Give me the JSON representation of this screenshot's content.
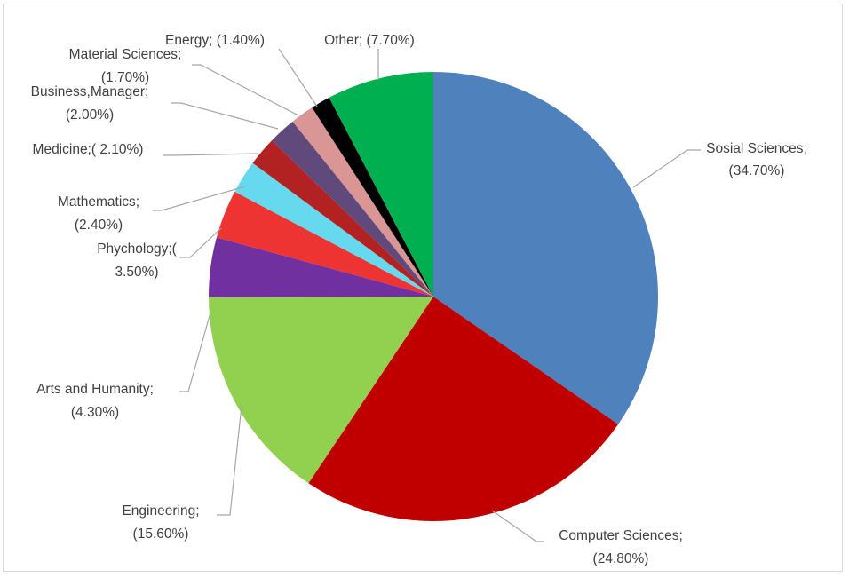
{
  "chart_data": {
    "type": "pie",
    "title": "",
    "unit": "%",
    "slices": [
      {
        "label": "Sosial Sciences;",
        "value_text": "(34.70%)",
        "value": 34.7,
        "color": "#4f81bd"
      },
      {
        "label": "Computer Sciences;",
        "value_text": "(24.80%)",
        "value": 24.8,
        "color": "#c00000"
      },
      {
        "label": "Engineering;",
        "value_text": "(15.60%)",
        "value": 15.6,
        "color": "#92d050"
      },
      {
        "label": "Arts and Humanity;",
        "value_text": "(4.30%)",
        "value": 4.3,
        "color": "#7030a0"
      },
      {
        "label": "Phychology;(",
        "value_text": "3.50%)",
        "value": 3.5,
        "color": "#ee3333"
      },
      {
        "label": "Mathematics;",
        "value_text": "(2.40%)",
        "value": 2.4,
        "color": "#66d9ee"
      },
      {
        "label": "Medicine;( 2.10%)",
        "value_text": "",
        "value": 2.1,
        "color": "#b22222"
      },
      {
        "label": "Business,Manager;",
        "value_text": "(2.00%)",
        "value": 2.0,
        "color": "#604a7b"
      },
      {
        "label": "Material Sciences;",
        "value_text": "(1.70%)",
        "value": 1.7,
        "color": "#d99694"
      },
      {
        "label": "Energy; (1.40%)",
        "value_text": "",
        "value": 1.4,
        "color": "#000000"
      },
      {
        "label": "Other; (7.70%)",
        "value_text": "",
        "value": 7.7,
        "color": "#00b050"
      }
    ]
  }
}
